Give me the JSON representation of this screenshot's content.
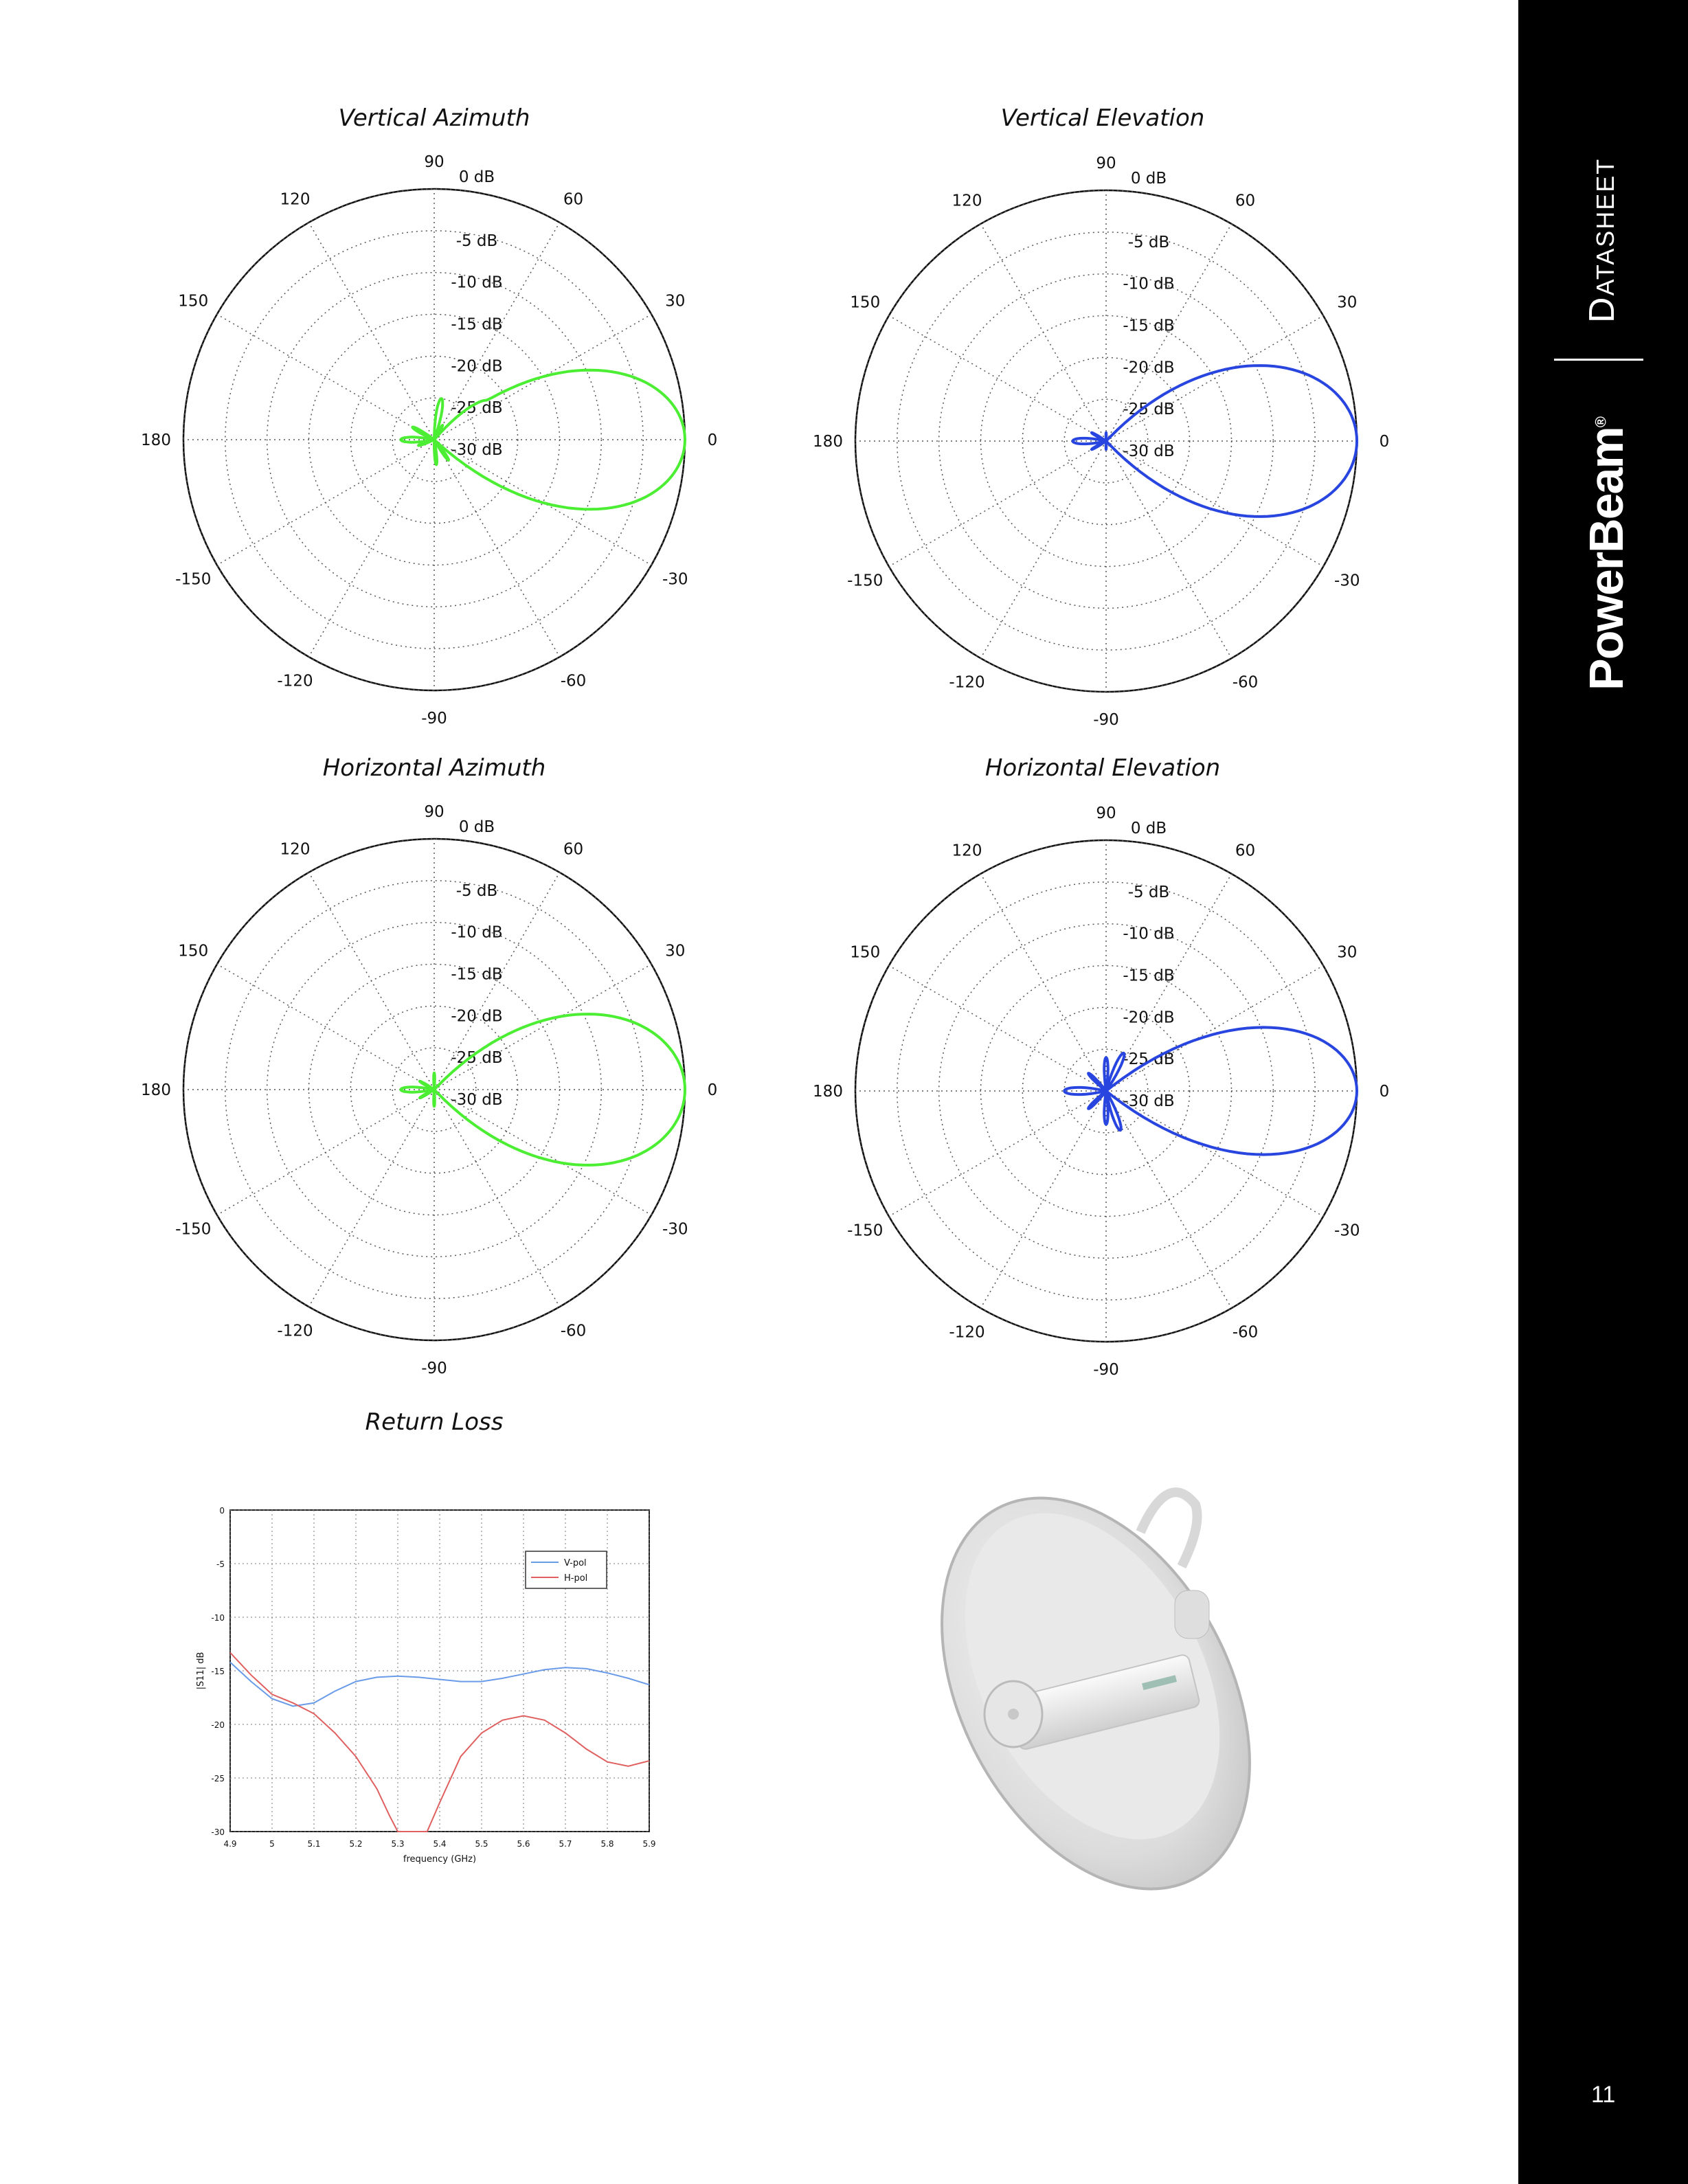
{
  "sidebar": {
    "doc_type": "Datasheet",
    "brand": "PowerBeam",
    "trademark": "®",
    "page_number": "11",
    "background_color": "#000000"
  },
  "polar_axes": {
    "angle_labels": [
      "0",
      "30",
      "60",
      "90",
      "120",
      "150",
      "180",
      "-150",
      "-120",
      "-90",
      "-60",
      "-30"
    ],
    "radial_labels": [
      "0 dB",
      "-5 dB",
      "-10 dB",
      "-15 dB",
      "-20 dB",
      "-25 dB",
      "-30 dB"
    ]
  },
  "return_loss": {
    "title": "Return Loss"
  },
  "product_image": {
    "name": "PowerBeam dish antenna"
  },
  "chart_data": [
    {
      "type": "polar",
      "title": "Vertical Azimuth",
      "color": "#4cee33",
      "r_range_db": [
        -30,
        0
      ],
      "lobes": [
        {
          "angle_deg": 0,
          "db": 0,
          "width_deg": 22
        },
        {
          "angle_deg": 35,
          "db": -22,
          "width_deg": 14
        },
        {
          "angle_deg": -22,
          "db": -21,
          "width_deg": 12
        },
        {
          "angle_deg": 80,
          "db": -25,
          "width_deg": 12
        },
        {
          "angle_deg": -85,
          "db": -27,
          "width_deg": 10
        },
        {
          "angle_deg": 180,
          "db": -26,
          "width_deg": 16
        },
        {
          "angle_deg": 150,
          "db": -27,
          "width_deg": 12
        },
        {
          "angle_deg": -160,
          "db": -28,
          "width_deg": 12
        },
        {
          "angle_deg": 60,
          "db": -28,
          "width_deg": 10
        },
        {
          "angle_deg": -55,
          "db": -27,
          "width_deg": 10
        }
      ]
    },
    {
      "type": "polar",
      "title": "Vertical Elevation",
      "color": "#2845e0",
      "r_range_db": [
        -30,
        0
      ],
      "lobes": [
        {
          "angle_deg": 0,
          "db": 0,
          "width_deg": 24
        },
        {
          "angle_deg": 20,
          "db": -26,
          "width_deg": 10
        },
        {
          "angle_deg": -15,
          "db": -27,
          "width_deg": 10
        },
        {
          "angle_deg": 180,
          "db": -26,
          "width_deg": 18
        },
        {
          "angle_deg": 150,
          "db": -28,
          "width_deg": 10
        },
        {
          "angle_deg": -150,
          "db": -28,
          "width_deg": 10
        },
        {
          "angle_deg": 90,
          "db": -29,
          "width_deg": 10
        },
        {
          "angle_deg": -90,
          "db": -29,
          "width_deg": 10
        }
      ]
    },
    {
      "type": "polar",
      "title": "Horizontal Azimuth",
      "color": "#4cee33",
      "r_range_db": [
        -30,
        0
      ],
      "lobes": [
        {
          "angle_deg": 0,
          "db": 0,
          "width_deg": 24
        },
        {
          "angle_deg": 12,
          "db": -24,
          "width_deg": 10
        },
        {
          "angle_deg": -10,
          "db": -23,
          "width_deg": 10
        },
        {
          "angle_deg": 180,
          "db": -26,
          "width_deg": 16
        },
        {
          "angle_deg": 25,
          "db": -27,
          "width_deg": 8
        },
        {
          "angle_deg": -25,
          "db": -27,
          "width_deg": 8
        },
        {
          "angle_deg": 90,
          "db": -28,
          "width_deg": 10
        },
        {
          "angle_deg": -90,
          "db": -28,
          "width_deg": 10
        },
        {
          "angle_deg": 150,
          "db": -28,
          "width_deg": 10
        },
        {
          "angle_deg": -150,
          "db": -28,
          "width_deg": 10
        }
      ]
    },
    {
      "type": "polar",
      "title": "Horizontal Elevation",
      "color": "#2845e0",
      "r_range_db": [
        -30,
        0
      ],
      "lobes": [
        {
          "angle_deg": 0,
          "db": 0,
          "width_deg": 20
        },
        {
          "angle_deg": 20,
          "db": -22,
          "width_deg": 12
        },
        {
          "angle_deg": -12,
          "db": -24,
          "width_deg": 10
        },
        {
          "angle_deg": 65,
          "db": -25,
          "width_deg": 12
        },
        {
          "angle_deg": -70,
          "db": -25,
          "width_deg": 12
        },
        {
          "angle_deg": 90,
          "db": -26,
          "width_deg": 12
        },
        {
          "angle_deg": -90,
          "db": -26,
          "width_deg": 12
        },
        {
          "angle_deg": 180,
          "db": -25,
          "width_deg": 16
        },
        {
          "angle_deg": 135,
          "db": -27,
          "width_deg": 12
        },
        {
          "angle_deg": -135,
          "db": -27,
          "width_deg": 12
        }
      ]
    },
    {
      "type": "line",
      "title": "",
      "xlabel": "frequency (GHz)",
      "ylabel": "|S11| dB",
      "xlim": [
        4.9,
        5.9
      ],
      "ylim": [
        -30,
        0
      ],
      "x_ticks": [
        "4.9",
        "5",
        "5.1",
        "5.2",
        "5.3",
        "5.4",
        "5.5",
        "5.6",
        "5.7",
        "5.8",
        "5.9"
      ],
      "y_ticks": [
        "0",
        "-5",
        "-10",
        "-15",
        "-20",
        "-25",
        "-30"
      ],
      "grid": true,
      "legend_position": "top-right",
      "series": [
        {
          "name": "V-pol",
          "color": "#6a9be8",
          "x": [
            4.9,
            4.95,
            5.0,
            5.05,
            5.1,
            5.15,
            5.2,
            5.25,
            5.3,
            5.35,
            5.4,
            5.45,
            5.5,
            5.55,
            5.6,
            5.65,
            5.7,
            5.75,
            5.8,
            5.85,
            5.9
          ],
          "y": [
            -14.2,
            -16.0,
            -17.6,
            -18.3,
            -18.0,
            -16.9,
            -16.0,
            -15.6,
            -15.5,
            -15.6,
            -15.8,
            -16.0,
            -16.0,
            -15.7,
            -15.3,
            -14.9,
            -14.7,
            -14.8,
            -15.2,
            -15.7,
            -16.3
          ]
        },
        {
          "name": "H-pol",
          "color": "#e06060",
          "x": [
            4.9,
            4.95,
            5.0,
            5.05,
            5.1,
            5.15,
            5.2,
            5.25,
            5.28,
            5.3,
            5.32,
            5.37,
            5.4,
            5.45,
            5.5,
            5.55,
            5.6,
            5.65,
            5.7,
            5.75,
            5.8,
            5.85,
            5.9
          ],
          "y": [
            -13.3,
            -15.4,
            -17.2,
            -18.0,
            -19.0,
            -20.8,
            -23.0,
            -26.0,
            -28.5,
            -30.0,
            -30.0,
            -30.0,
            -27.3,
            -23.0,
            -20.8,
            -19.6,
            -19.2,
            -19.6,
            -20.8,
            -22.3,
            -23.5,
            -23.9,
            -23.4
          ]
        }
      ]
    }
  ]
}
